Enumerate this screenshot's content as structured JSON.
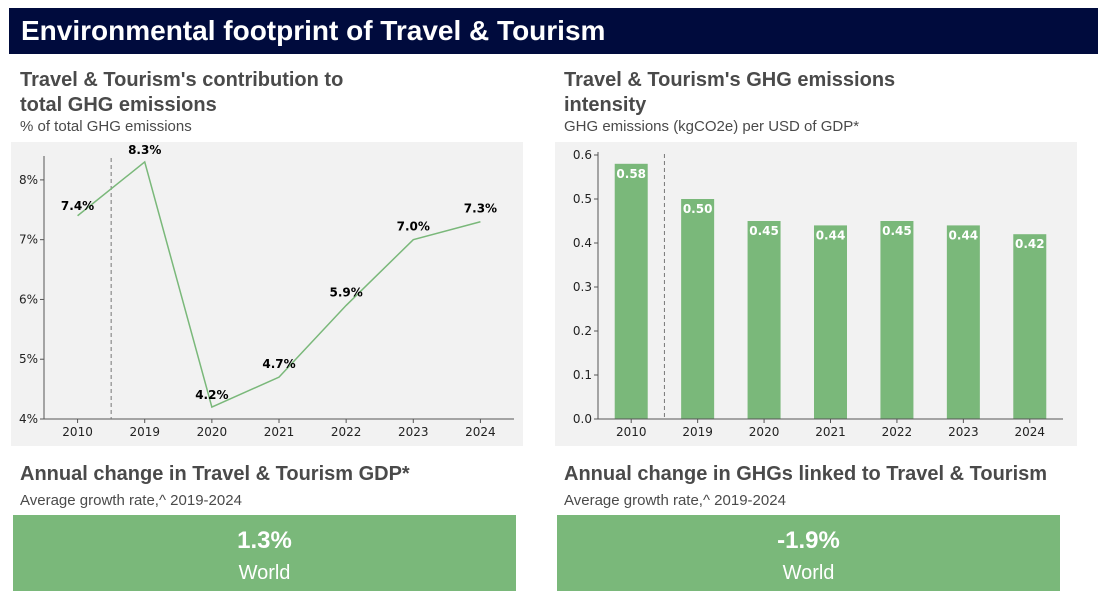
{
  "header": {
    "title": "Environmental footprint of Travel & Tourism"
  },
  "left_chart": {
    "title_line1": "Travel & Tourism's contribution to",
    "title_line2": "total GHG emissions",
    "subtitle": "% of total GHG emissions"
  },
  "right_chart": {
    "title_line1": "Travel & Tourism's GHG emissions",
    "title_line2": "intensity",
    "subtitle": "GHG emissions (kgCO2e) per USD of GDP*"
  },
  "kpis": {
    "left": {
      "title": "Annual change in Travel & Tourism GDP*",
      "subtitle": "Average growth rate,^ 2019-2024",
      "value": "1.3%",
      "label": "World"
    },
    "right": {
      "title": "Annual change in GHGs linked to Travel & Tourism",
      "subtitle": "Average growth rate,^ 2019-2024",
      "value": "-1.9%",
      "label": "World"
    }
  },
  "colors": {
    "banner": "#000b3d",
    "accent": "#7ab87a",
    "panel": "#f2f2f2"
  },
  "chart_data": [
    {
      "type": "line",
      "title": "Travel & Tourism's contribution to total GHG emissions",
      "ylabel": "% of total GHG emissions",
      "categories": [
        "2010",
        "2019",
        "2020",
        "2021",
        "2022",
        "2023",
        "2024"
      ],
      "values": [
        7.4,
        8.3,
        4.2,
        4.7,
        5.9,
        7.0,
        7.3
      ],
      "labels": [
        "7.4%",
        "8.3%",
        "4.2%",
        "4.7%",
        "5.9%",
        "7.0%",
        "7.3%"
      ],
      "ylim": [
        4,
        8.5
      ],
      "yticks": [
        4,
        5,
        6,
        7,
        8
      ],
      "ytick_labels": [
        "4%",
        "5%",
        "6%",
        "7%",
        "8%"
      ],
      "separator_after": "2010",
      "color": "#7ab87a"
    },
    {
      "type": "bar",
      "title": "Travel & Tourism's GHG emissions intensity",
      "ylabel": "GHG emissions (kgCO2e) per USD of GDP*",
      "categories": [
        "2010",
        "2019",
        "2020",
        "2021",
        "2022",
        "2023",
        "2024"
      ],
      "values": [
        0.58,
        0.5,
        0.45,
        0.44,
        0.45,
        0.44,
        0.42
      ],
      "labels": [
        "0.58",
        "0.50",
        "0.45",
        "0.44",
        "0.45",
        "0.44",
        "0.42"
      ],
      "ylim": [
        0,
        0.6
      ],
      "yticks": [
        0,
        0.1,
        0.2,
        0.3,
        0.4,
        0.5,
        0.6
      ],
      "ytick_labels": [
        "0.0",
        "0.1",
        "0.2",
        "0.3",
        "0.4",
        "0.5",
        "0.6"
      ],
      "separator_after": "2010",
      "color": "#7ab87a"
    }
  ]
}
